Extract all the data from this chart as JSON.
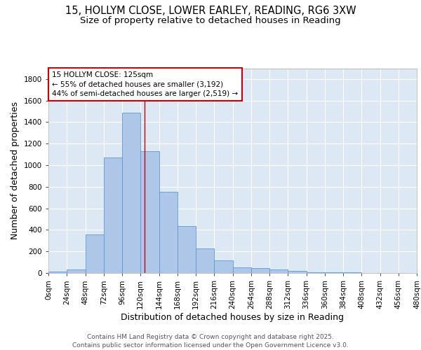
{
  "title_line1": "15, HOLLYM CLOSE, LOWER EARLEY, READING, RG6 3XW",
  "title_line2": "Size of property relative to detached houses in Reading",
  "xlabel": "Distribution of detached houses by size in Reading",
  "ylabel": "Number of detached properties",
  "bin_edges": [
    0,
    24,
    48,
    72,
    96,
    120,
    144,
    168,
    192,
    216,
    240,
    264,
    288,
    312,
    336,
    360,
    384,
    408,
    432,
    456,
    480
  ],
  "bar_heights": [
    10,
    35,
    355,
    1070,
    1490,
    1130,
    755,
    435,
    230,
    115,
    55,
    45,
    30,
    20,
    5,
    5,
    5,
    3,
    2,
    2
  ],
  "bar_color": "#aec6e8",
  "bar_edge_color": "#5b9bd5",
  "property_size": 125,
  "vline_color": "#cc0000",
  "annotation_line1": "15 HOLLYM CLOSE: 125sqm",
  "annotation_line2": "← 55% of detached houses are smaller (3,192)",
  "annotation_line3": "44% of semi-detached houses are larger (2,519) →",
  "annotation_box_color": "#cc0000",
  "ylim": [
    0,
    1900
  ],
  "yticks": [
    0,
    200,
    400,
    600,
    800,
    1000,
    1200,
    1400,
    1600,
    1800
  ],
  "background_color": "#dde8f5",
  "grid_color": "#ffffff",
  "footer_line1": "Contains HM Land Registry data © Crown copyright and database right 2025.",
  "footer_line2": "Contains public sector information licensed under the Open Government Licence v3.0.",
  "title_fontsize": 10.5,
  "subtitle_fontsize": 9.5,
  "axis_label_fontsize": 9,
  "tick_fontsize": 7.5,
  "annotation_fontsize": 7.5,
  "footer_fontsize": 6.5
}
